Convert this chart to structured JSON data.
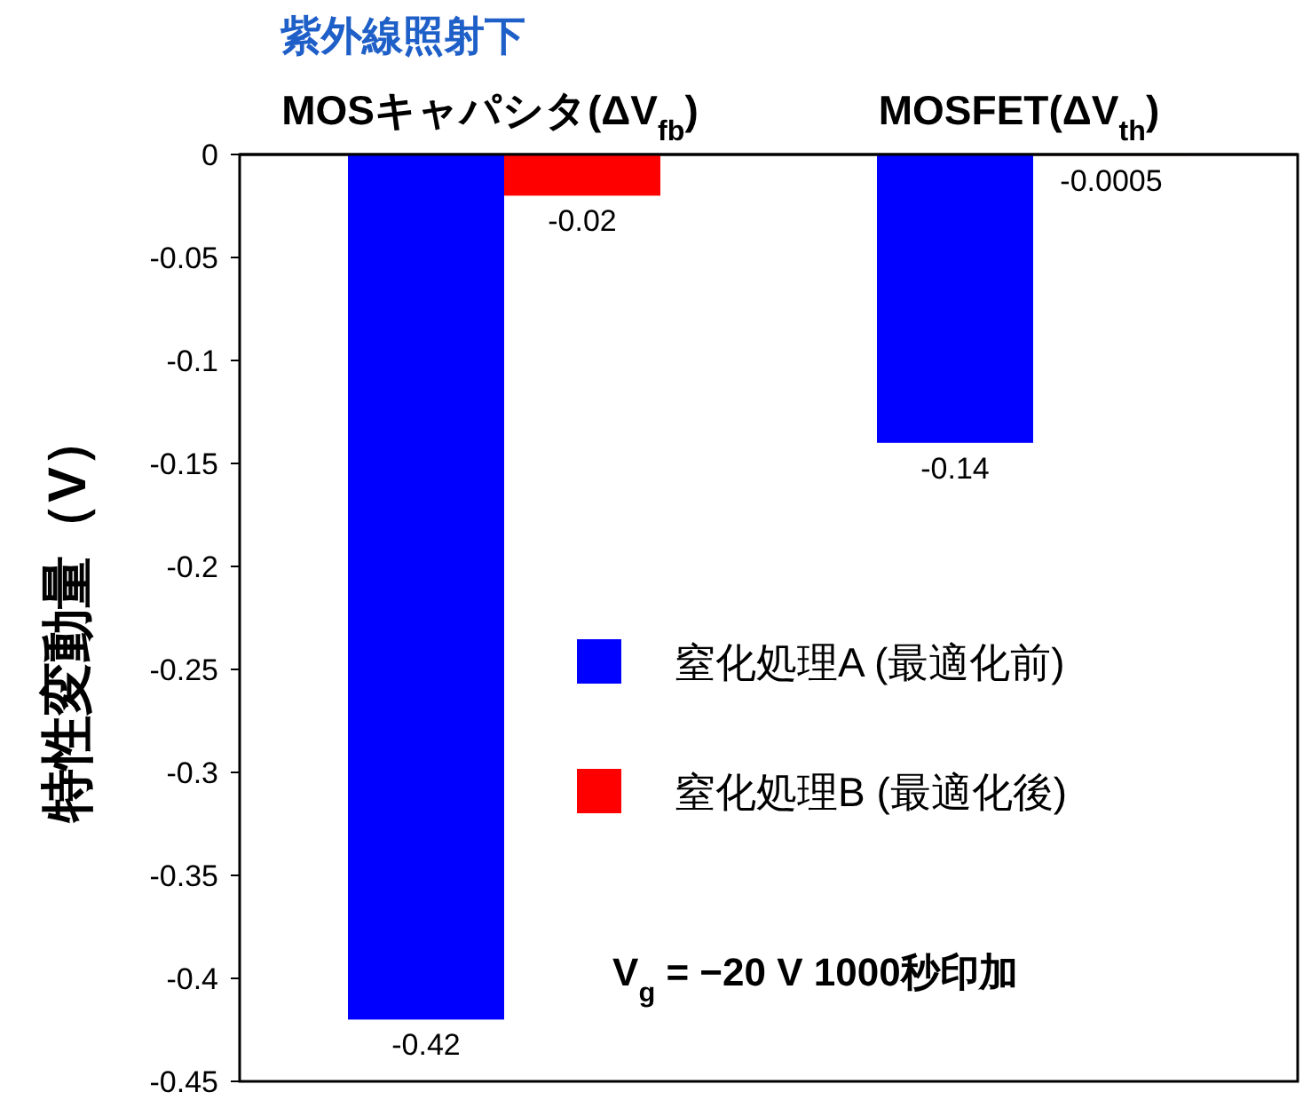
{
  "chart_data": {
    "type": "bar",
    "title": "紫外線照射下",
    "categories": [
      "MOSキャパシタ(ΔV$_{fb}$)",
      "MOSFET(ΔV$_{th}$)"
    ],
    "series": [
      {
        "name": "窒化処理A (最適化前)",
        "color": "#0000ff",
        "values": [
          -0.42,
          -0.14
        ]
      },
      {
        "name": "窒化処理B (最適化後)",
        "color": "#ff0000",
        "values": [
          -0.02,
          -0.0005
        ]
      }
    ],
    "ylim": [
      -0.45,
      0
    ],
    "yticks": [
      0,
      -0.05,
      -0.1,
      -0.15,
      -0.2,
      -0.25,
      -0.3,
      -0.35,
      -0.4,
      -0.45
    ],
    "ylabel": "特性変動量（V）",
    "annotations": [
      {
        "text": "V$_{g}$ = −20 V 1000秒印加"
      }
    ],
    "data_labels": true,
    "legend": "right"
  }
}
